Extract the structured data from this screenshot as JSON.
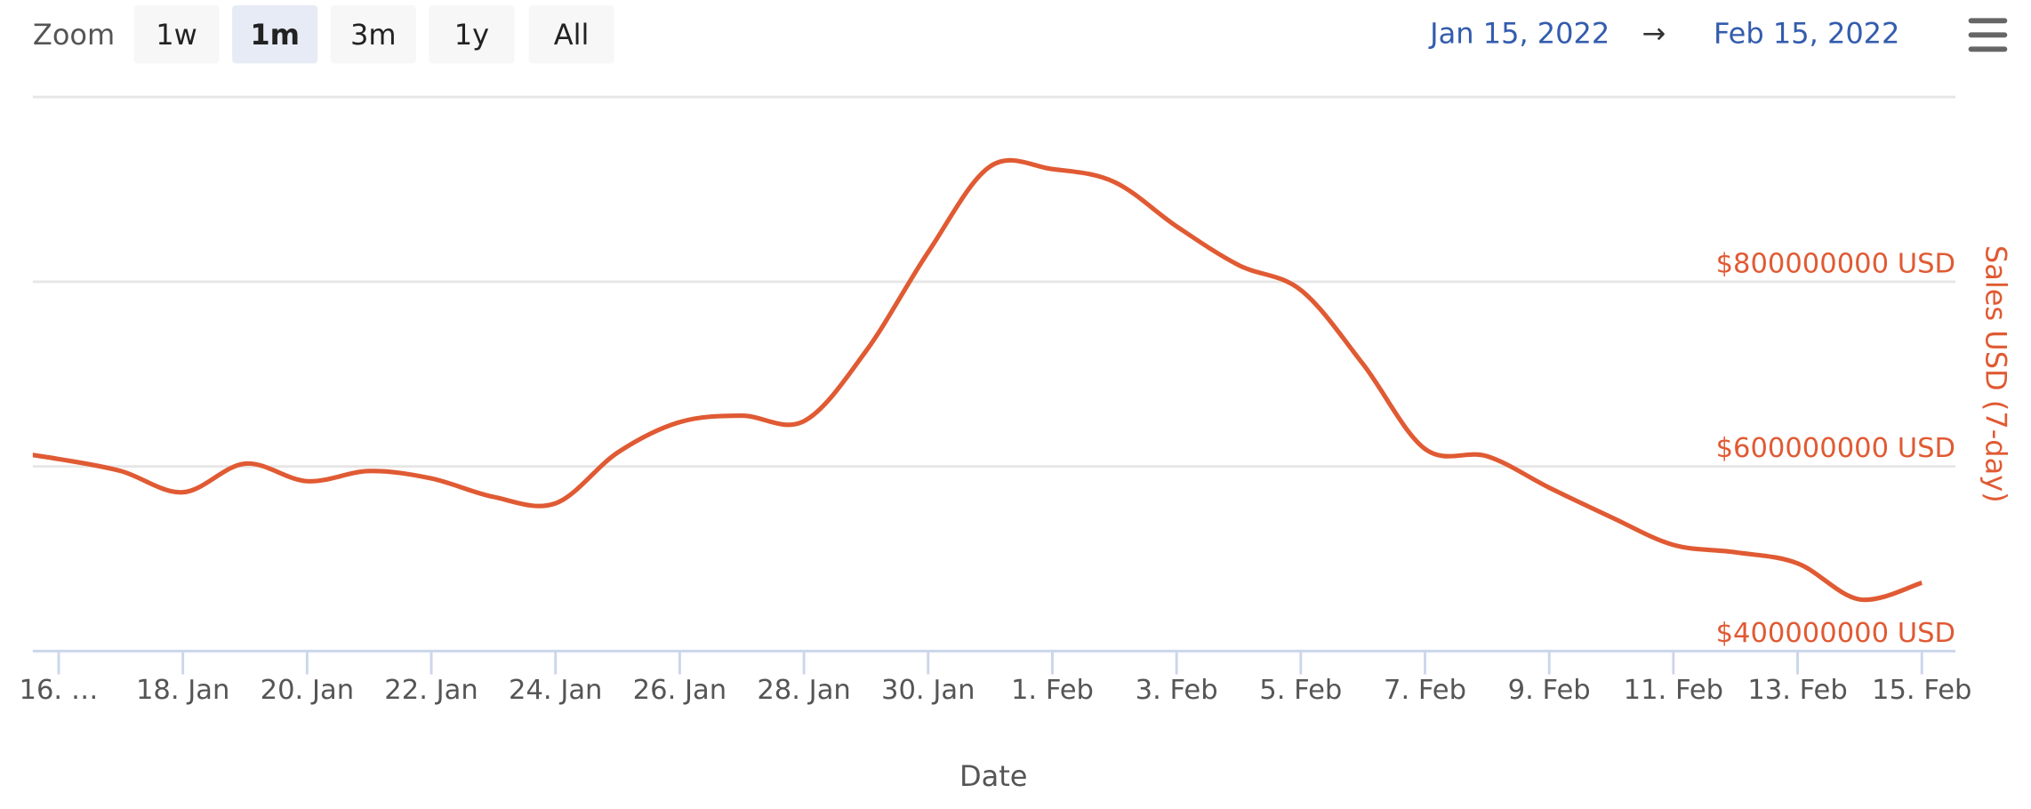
{
  "toolbar": {
    "zoom_label": "Zoom",
    "buttons": [
      "1w",
      "1m",
      "3m",
      "1y",
      "All"
    ],
    "selected": "1m",
    "range_from": "Jan 15, 2022",
    "range_arrow": "→",
    "range_to": "Feb 15, 2022"
  },
  "chart_data": {
    "type": "line",
    "x_label": "Date",
    "y_label": "Sales USD (7-day)",
    "x": [
      "2022-01-15",
      "2022-01-16",
      "2022-01-17",
      "2022-01-18",
      "2022-01-19",
      "2022-01-20",
      "2022-01-21",
      "2022-01-22",
      "2022-01-23",
      "2022-01-24",
      "2022-01-25",
      "2022-01-26",
      "2022-01-27",
      "2022-01-28",
      "2022-01-29",
      "2022-01-30",
      "2022-01-31",
      "2022-02-01",
      "2022-02-02",
      "2022-02-03",
      "2022-02-04",
      "2022-02-05",
      "2022-02-06",
      "2022-02-07",
      "2022-02-08",
      "2022-02-09",
      "2022-02-10",
      "2022-02-11",
      "2022-02-12",
      "2022-02-13",
      "2022-02-14",
      "2022-02-15"
    ],
    "series": [
      {
        "name": "Sales USD (7-day)",
        "color": "#e05a33",
        "values": [
          618000000,
          608000000,
          595000000,
          572000000,
          603000000,
          584000000,
          595000000,
          587000000,
          567000000,
          560000000,
          615000000,
          648000000,
          655000000,
          649000000,
          725000000,
          832000000,
          925000000,
          922000000,
          908000000,
          860000000,
          818000000,
          791000000,
          711000000,
          619000000,
          611000000,
          577000000,
          545000000,
          515000000,
          507000000,
          495000000,
          456000000,
          474000000
        ]
      }
    ],
    "xlim": [
      "2022-01-15T14:00",
      "2022-02-15T13:00"
    ],
    "xticks": [
      {
        "value": "2022-01-16",
        "label": "16. …"
      },
      {
        "value": "2022-01-18",
        "label": "18. Jan"
      },
      {
        "value": "2022-01-20",
        "label": "20. Jan"
      },
      {
        "value": "2022-01-22",
        "label": "22. Jan"
      },
      {
        "value": "2022-01-24",
        "label": "24. Jan"
      },
      {
        "value": "2022-01-26",
        "label": "26. Jan"
      },
      {
        "value": "2022-01-28",
        "label": "28. Jan"
      },
      {
        "value": "2022-01-30",
        "label": "30. Jan"
      },
      {
        "value": "2022-02-01",
        "label": "1. Feb"
      },
      {
        "value": "2022-02-03",
        "label": "3. Feb"
      },
      {
        "value": "2022-02-05",
        "label": "5. Feb"
      },
      {
        "value": "2022-02-07",
        "label": "7. Feb"
      },
      {
        "value": "2022-02-09",
        "label": "9. Feb"
      },
      {
        "value": "2022-02-11",
        "label": "11. Feb"
      },
      {
        "value": "2022-02-13",
        "label": "13. Feb"
      },
      {
        "value": "2022-02-15",
        "label": "15. Feb"
      }
    ],
    "ylim": [
      400000000,
      1000000000
    ],
    "yticks": [
      {
        "value": 400000000,
        "label": "$400000000 USD"
      },
      {
        "value": 600000000,
        "label": "$600000000 USD"
      },
      {
        "value": 800000000,
        "label": "$800000000 USD"
      }
    ],
    "grid": true
  }
}
